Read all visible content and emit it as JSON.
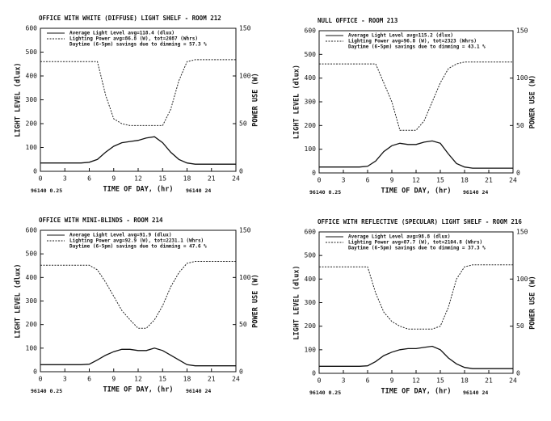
{
  "chart_data": [
    {
      "type": "line",
      "title": "OFFICE WITH WHITE (DIFFUSE) LIGHT SHELF - ROOM 212",
      "x_label": "TIME OF DAY, (hr)",
      "y_label": "LIGHT LEVEL (dlux)",
      "y2_label": "POWER USE (W)",
      "annotation": "Daytime (6-5pm) savings due to dimming = 57.3 %",
      "footer_left": "96140 0.25",
      "footer_right": "96140 24",
      "x": [
        0,
        1,
        2,
        3,
        4,
        5,
        6,
        7,
        8,
        9,
        10,
        11,
        12,
        13,
        14,
        15,
        16,
        17,
        18,
        19,
        20,
        21,
        22,
        23,
        24
      ],
      "xlim": [
        0,
        24
      ],
      "xticks": [
        0,
        3,
        6,
        9,
        12,
        15,
        18,
        21,
        24
      ],
      "ylim": [
        0,
        600
      ],
      "yticks": [
        0,
        100,
        200,
        300,
        400,
        500,
        600
      ],
      "y2lim": [
        0,
        150
      ],
      "y2ticks": [
        0,
        50,
        100,
        150
      ],
      "series": [
        {
          "name": "Average Light Level avg=118.4 (dlux)",
          "color": "#111111",
          "dashed": false,
          "values": [
            35,
            35,
            35,
            35,
            35,
            35,
            38,
            50,
            80,
            105,
            120,
            125,
            130,
            140,
            145,
            120,
            80,
            50,
            35,
            30,
            30,
            30,
            30,
            30,
            30
          ]
        },
        {
          "name": "Lighting Power avg=86.8 (W), tot=2087 (Whrs)",
          "color": "#222222",
          "dashed": true,
          "axis": "y2",
          "values": [
            115,
            115,
            115,
            115,
            115,
            115,
            115,
            115,
            80,
            55,
            50,
            48,
            48,
            48,
            48,
            48,
            65,
            95,
            115,
            117,
            117,
            117,
            117,
            117,
            117
          ]
        }
      ]
    },
    {
      "type": "line",
      "title": "NULL OFFICE - ROOM 213",
      "x_label": "TIME OF DAY, (hr)",
      "y_label": "LIGHT LEVEL (dlux)",
      "y2_label": "POWER USE (W)",
      "annotation": "Daytime (6-5pm) savings due to dimming = 43.1 %",
      "footer_left": "96140 0.25",
      "footer_right": "96140 24",
      "x": [
        0,
        1,
        2,
        3,
        4,
        5,
        6,
        7,
        8,
        9,
        10,
        11,
        12,
        13,
        14,
        15,
        16,
        17,
        18,
        19,
        20,
        21,
        22,
        23,
        24
      ],
      "xlim": [
        0,
        24
      ],
      "xticks": [
        0,
        3,
        6,
        9,
        12,
        15,
        18,
        21,
        24
      ],
      "ylim": [
        0,
        600
      ],
      "yticks": [
        0,
        100,
        200,
        300,
        400,
        500,
        600
      ],
      "y2lim": [
        0,
        150
      ],
      "y2ticks": [
        0,
        50,
        100,
        150
      ],
      "series": [
        {
          "name": "Average Light Level avg=115.2 (dlux)",
          "color": "#111111",
          "dashed": false,
          "values": [
            25,
            25,
            25,
            25,
            25,
            25,
            28,
            50,
            90,
            115,
            125,
            120,
            120,
            130,
            135,
            125,
            80,
            40,
            25,
            20,
            20,
            20,
            20,
            20,
            20
          ]
        },
        {
          "name": "Lighting Power avg=96.8 (W), tot=2323 (Whrs)",
          "color": "#222222",
          "dashed": true,
          "axis": "y2",
          "values": [
            115,
            115,
            115,
            115,
            115,
            115,
            115,
            115,
            95,
            75,
            45,
            45,
            45,
            55,
            75,
            95,
            110,
            115,
            117,
            117,
            117,
            117,
            117,
            117,
            117
          ]
        }
      ]
    },
    {
      "type": "line",
      "title": "OFFICE WITH MINI-BLINDS - ROOM 214",
      "x_label": "TIME OF DAY, (hr)",
      "y_label": "LIGHT LEVEL (dlux)",
      "y2_label": "POWER USE (W)",
      "annotation": "Daytime (6-5pm) savings due to dimming = 47.6 %",
      "footer_left": "96140 0.25",
      "footer_right": "96140 24",
      "x": [
        0,
        1,
        2,
        3,
        4,
        5,
        6,
        7,
        8,
        9,
        10,
        11,
        12,
        13,
        14,
        15,
        16,
        17,
        18,
        19,
        20,
        21,
        22,
        23,
        24
      ],
      "xlim": [
        0,
        24
      ],
      "xticks": [
        0,
        3,
        6,
        9,
        12,
        15,
        18,
        21,
        24
      ],
      "ylim": [
        0,
        600
      ],
      "yticks": [
        0,
        100,
        200,
        300,
        400,
        500,
        600
      ],
      "y2lim": [
        0,
        150
      ],
      "y2ticks": [
        0,
        50,
        100,
        150
      ],
      "series": [
        {
          "name": "Average Light Level avg=91.9 (dlux)",
          "color": "#111111",
          "dashed": false,
          "values": [
            30,
            30,
            30,
            30,
            30,
            30,
            32,
            50,
            70,
            85,
            95,
            95,
            90,
            90,
            100,
            90,
            70,
            50,
            30,
            25,
            25,
            25,
            25,
            25,
            25
          ]
        },
        {
          "name": "Lighting Power avg=92.9 (W), tot=2231.1 (Whrs)",
          "color": "#222222",
          "dashed": true,
          "axis": "y2",
          "values": [
            113,
            113,
            113,
            113,
            113,
            113,
            113,
            108,
            95,
            80,
            65,
            55,
            46,
            46,
            55,
            70,
            90,
            105,
            115,
            117,
            117,
            117,
            117,
            117,
            117
          ]
        }
      ]
    },
    {
      "type": "line",
      "title": "OFFICE WITH REFLECTIVE (SPECULAR) LIGHT SHELF - ROOM 216",
      "x_label": "TIME OF DAY, (hr)",
      "y_label": "LIGHT LEVEL (dlux)",
      "y2_label": "POWER USE (W)",
      "annotation": "Daytime (6-5pm) savings due to dimming = 37.3 %",
      "footer_left": "96140 0.25",
      "footer_right": "96140 24",
      "x": [
        0,
        1,
        2,
        3,
        4,
        5,
        6,
        7,
        8,
        9,
        10,
        11,
        12,
        13,
        14,
        15,
        16,
        17,
        18,
        19,
        20,
        21,
        22,
        23,
        24
      ],
      "xlim": [
        0,
        24
      ],
      "xticks": [
        0,
        3,
        6,
        9,
        12,
        15,
        18,
        21,
        24
      ],
      "ylim": [
        0,
        600
      ],
      "yticks": [
        0,
        100,
        200,
        300,
        400,
        500,
        600
      ],
      "y2lim": [
        0,
        150
      ],
      "y2ticks": [
        0,
        50,
        100,
        150
      ],
      "series": [
        {
          "name": "Average Light Level avg=98.8 (dlux)",
          "color": "#111111",
          "dashed": false,
          "values": [
            30,
            30,
            30,
            30,
            30,
            30,
            32,
            50,
            75,
            90,
            100,
            105,
            105,
            110,
            115,
            100,
            65,
            40,
            25,
            20,
            20,
            20,
            20,
            20,
            20
          ]
        },
        {
          "name": "Lighting Power avg=87.7 (W), tot=2104.8 (Whrs)",
          "color": "#222222",
          "dashed": true,
          "axis": "y2",
          "values": [
            113,
            113,
            113,
            113,
            113,
            113,
            113,
            85,
            65,
            55,
            50,
            47,
            47,
            47,
            47,
            50,
            70,
            100,
            113,
            115,
            115,
            115,
            115,
            115,
            115
          ]
        }
      ]
    }
  ]
}
